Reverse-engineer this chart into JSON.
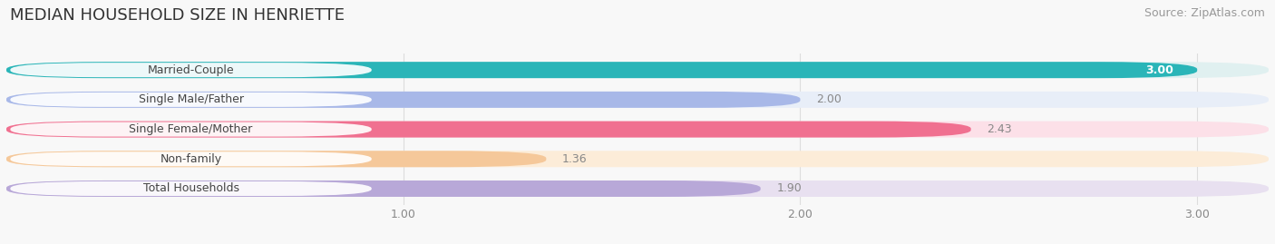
{
  "title": "MEDIAN HOUSEHOLD SIZE IN HENRIETTE",
  "source": "Source: ZipAtlas.com",
  "categories": [
    "Married-Couple",
    "Single Male/Father",
    "Single Female/Mother",
    "Non-family",
    "Total Households"
  ],
  "values": [
    3.0,
    2.0,
    2.43,
    1.36,
    1.9
  ],
  "bar_colors": [
    "#2ab5b8",
    "#a8b8e8",
    "#f07090",
    "#f5c89a",
    "#b8a8d8"
  ],
  "bar_bg_colors": [
    "#e0f0f0",
    "#e8eef8",
    "#fce0e8",
    "#fcecd8",
    "#e8e0f0"
  ],
  "value_inside": [
    true,
    false,
    false,
    false,
    false
  ],
  "value_colors_inside": [
    "#ffffff"
  ],
  "value_colors_outside": [
    "#888888"
  ],
  "xlim_data": [
    0,
    3.18
  ],
  "x_axis_start": 0,
  "xticks": [
    1.0,
    2.0,
    3.0
  ],
  "xtick_labels": [
    "1.00",
    "2.00",
    "3.00"
  ],
  "title_fontsize": 13,
  "source_fontsize": 9,
  "label_fontsize": 9,
  "value_fontsize": 9,
  "background_color": "#f8f8f8",
  "bar_height": 0.55,
  "bar_spacing": 1.0
}
